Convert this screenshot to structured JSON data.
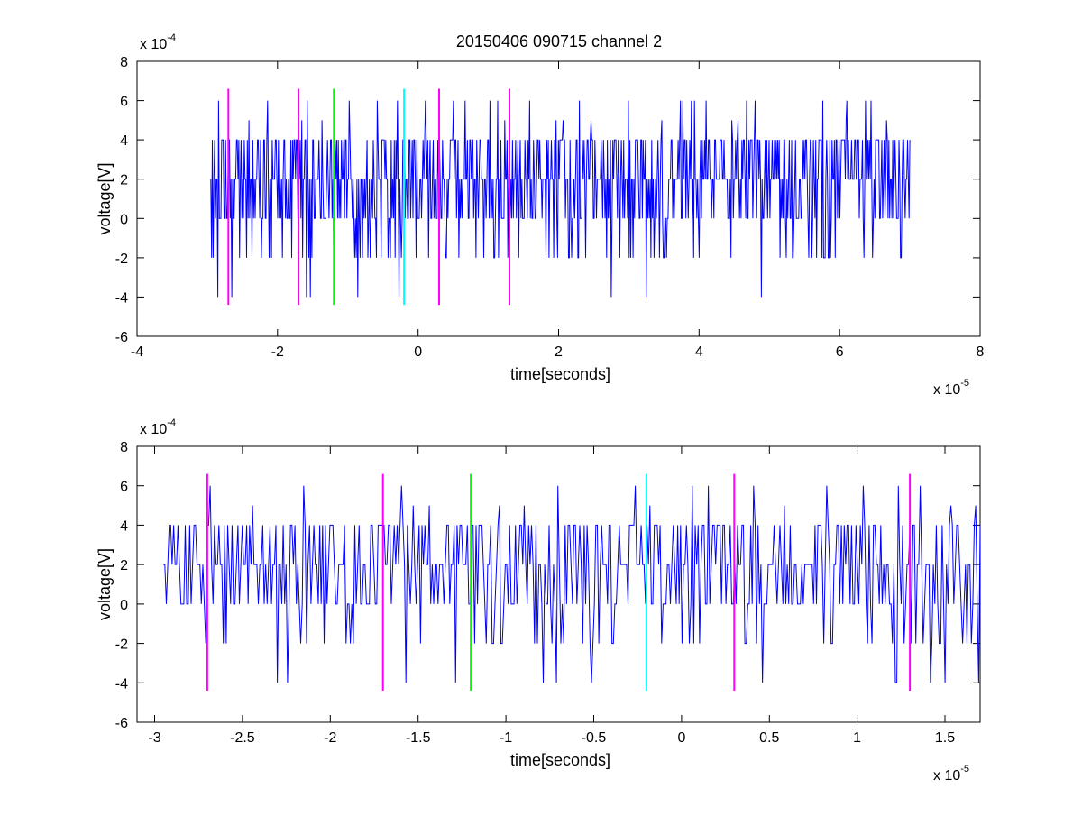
{
  "figure": {
    "title": "20150406 090715 channel 2"
  },
  "chart_data": [
    {
      "type": "line",
      "title": "20150406 090715 channel 2",
      "xlabel": "time[seconds]",
      "ylabel": "voltage[V]",
      "x_multiplier_label": {
        "base": "x 10",
        "exponent": "-5"
      },
      "y_multiplier_label": {
        "base": "x 10",
        "exponent": "-4"
      },
      "xlim": [
        -4,
        8
      ],
      "ylim": [
        -6,
        8
      ],
      "x_ticks": [
        -4,
        -2,
        0,
        2,
        4,
        6,
        8
      ],
      "x_tick_labels": [
        "-4",
        "-2",
        "0",
        "2",
        "4",
        "6",
        "8"
      ],
      "y_ticks": [
        -6,
        -4,
        -2,
        0,
        2,
        4,
        6,
        8
      ],
      "y_tick_labels": [
        "-6",
        "-4",
        "-2",
        "0",
        "2",
        "4",
        "6",
        "8"
      ],
      "units_note": "x in units of 1e-5 s, y in units of 1e-4 V",
      "grid": false,
      "series": [
        {
          "color": "#0000ff",
          "x_range": [
            -2.95,
            7.0
          ],
          "levels": [
            -4,
            -2,
            0,
            2,
            4,
            5,
            6
          ],
          "seed": 7,
          "points": 900
        }
      ],
      "markers": [
        {
          "x": -2.7,
          "color": "#ff00ff",
          "y_range": [
            -4.4,
            6.6
          ]
        },
        {
          "x": -1.7,
          "color": "#ff00ff",
          "y_range": [
            -4.4,
            6.6
          ]
        },
        {
          "x": -1.2,
          "color": "#00ff00",
          "y_range": [
            -4.4,
            6.6
          ]
        },
        {
          "x": -0.2,
          "color": "#00ffff",
          "y_range": [
            -4.4,
            6.6
          ]
        },
        {
          "x": 0.3,
          "color": "#ff00ff",
          "y_range": [
            -4.4,
            6.6
          ]
        },
        {
          "x": 1.3,
          "color": "#ff00ff",
          "y_range": [
            -4.4,
            6.6
          ]
        }
      ]
    },
    {
      "type": "line",
      "title": "",
      "xlabel": "time[seconds]",
      "ylabel": "voltage[V]",
      "x_multiplier_label": {
        "base": "x 10",
        "exponent": "-5"
      },
      "y_multiplier_label": {
        "base": "x 10",
        "exponent": "-4"
      },
      "xlim": [
        -3.1,
        1.7
      ],
      "ylim": [
        -6,
        8
      ],
      "x_ticks": [
        -3,
        -2.5,
        -2,
        -1.5,
        -1,
        -0.5,
        0,
        0.5,
        1,
        1.5
      ],
      "x_tick_labels": [
        "-3",
        "-2.5",
        "-2",
        "-1.5",
        "-1",
        "-0.5",
        "0",
        "0.5",
        "1",
        "1.5"
      ],
      "y_ticks": [
        -6,
        -4,
        -2,
        0,
        2,
        4,
        6,
        8
      ],
      "y_tick_labels": [
        "-6",
        "-4",
        "-2",
        "0",
        "2",
        "4",
        "6",
        "8"
      ],
      "units_note": "x in units of 1e-5 s, y in units of 1e-4 V",
      "grid": false,
      "series": [
        {
          "color": "#0000ff",
          "x_range": [
            -2.95,
            1.7
          ],
          "levels": [
            -4,
            -2,
            0,
            2,
            4,
            5,
            6
          ],
          "seed": 11,
          "points": 560
        }
      ],
      "markers": [
        {
          "x": -2.7,
          "color": "#ff00ff",
          "y_range": [
            -4.4,
            6.6
          ]
        },
        {
          "x": -1.7,
          "color": "#ff00ff",
          "y_range": [
            -4.4,
            6.6
          ]
        },
        {
          "x": -1.2,
          "color": "#00ff00",
          "y_range": [
            -4.4,
            6.6
          ]
        },
        {
          "x": -0.2,
          "color": "#00ffff",
          "y_range": [
            -4.4,
            6.6
          ]
        },
        {
          "x": 0.3,
          "color": "#ff00ff",
          "y_range": [
            -4.4,
            6.6
          ]
        },
        {
          "x": 1.3,
          "color": "#ff00ff",
          "y_range": [
            -4.4,
            6.6
          ]
        }
      ]
    }
  ]
}
